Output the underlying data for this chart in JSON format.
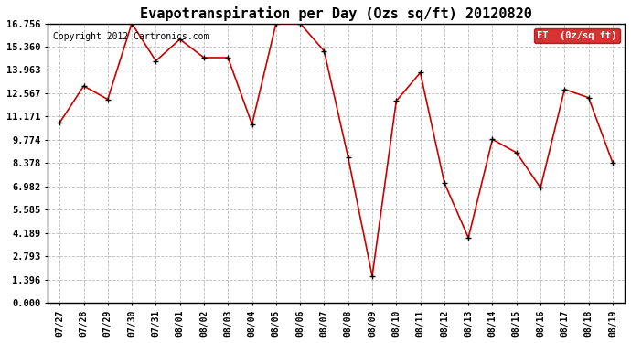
{
  "title": "Evapotranspiration per Day (Ozs sq/ft) 20120820",
  "copyright": "Copyright 2012 Cartronics.com",
  "legend_label": "ET  (0z/sq ft)",
  "x_labels": [
    "07/27",
    "07/28",
    "07/29",
    "07/30",
    "07/31",
    "08/01",
    "08/02",
    "08/03",
    "08/04",
    "08/05",
    "08/06",
    "08/07",
    "08/08",
    "08/09",
    "08/10",
    "08/11",
    "08/12",
    "08/13",
    "08/14",
    "08/15",
    "08/16",
    "08/17",
    "08/18",
    "08/19"
  ],
  "y_values": [
    10.8,
    13.0,
    12.2,
    16.756,
    14.5,
    15.8,
    14.7,
    14.7,
    10.7,
    16.756,
    16.756,
    15.1,
    8.7,
    1.6,
    12.1,
    13.8,
    7.2,
    3.9,
    9.8,
    9.0,
    6.9,
    12.8,
    12.3,
    8.4
  ],
  "line_color": "#cc0000",
  "marker_color": "#000000",
  "background_color": "#ffffff",
  "grid_color": "#aaaaaa",
  "y_ticks": [
    0.0,
    1.396,
    2.793,
    4.189,
    5.585,
    6.982,
    8.378,
    9.774,
    11.171,
    12.567,
    13.963,
    15.36,
    16.756
  ],
  "ylim": [
    0.0,
    16.756
  ],
  "title_fontsize": 11,
  "copyright_fontsize": 7,
  "legend_bg": "#cc0000",
  "legend_text_color": "#ffffff"
}
